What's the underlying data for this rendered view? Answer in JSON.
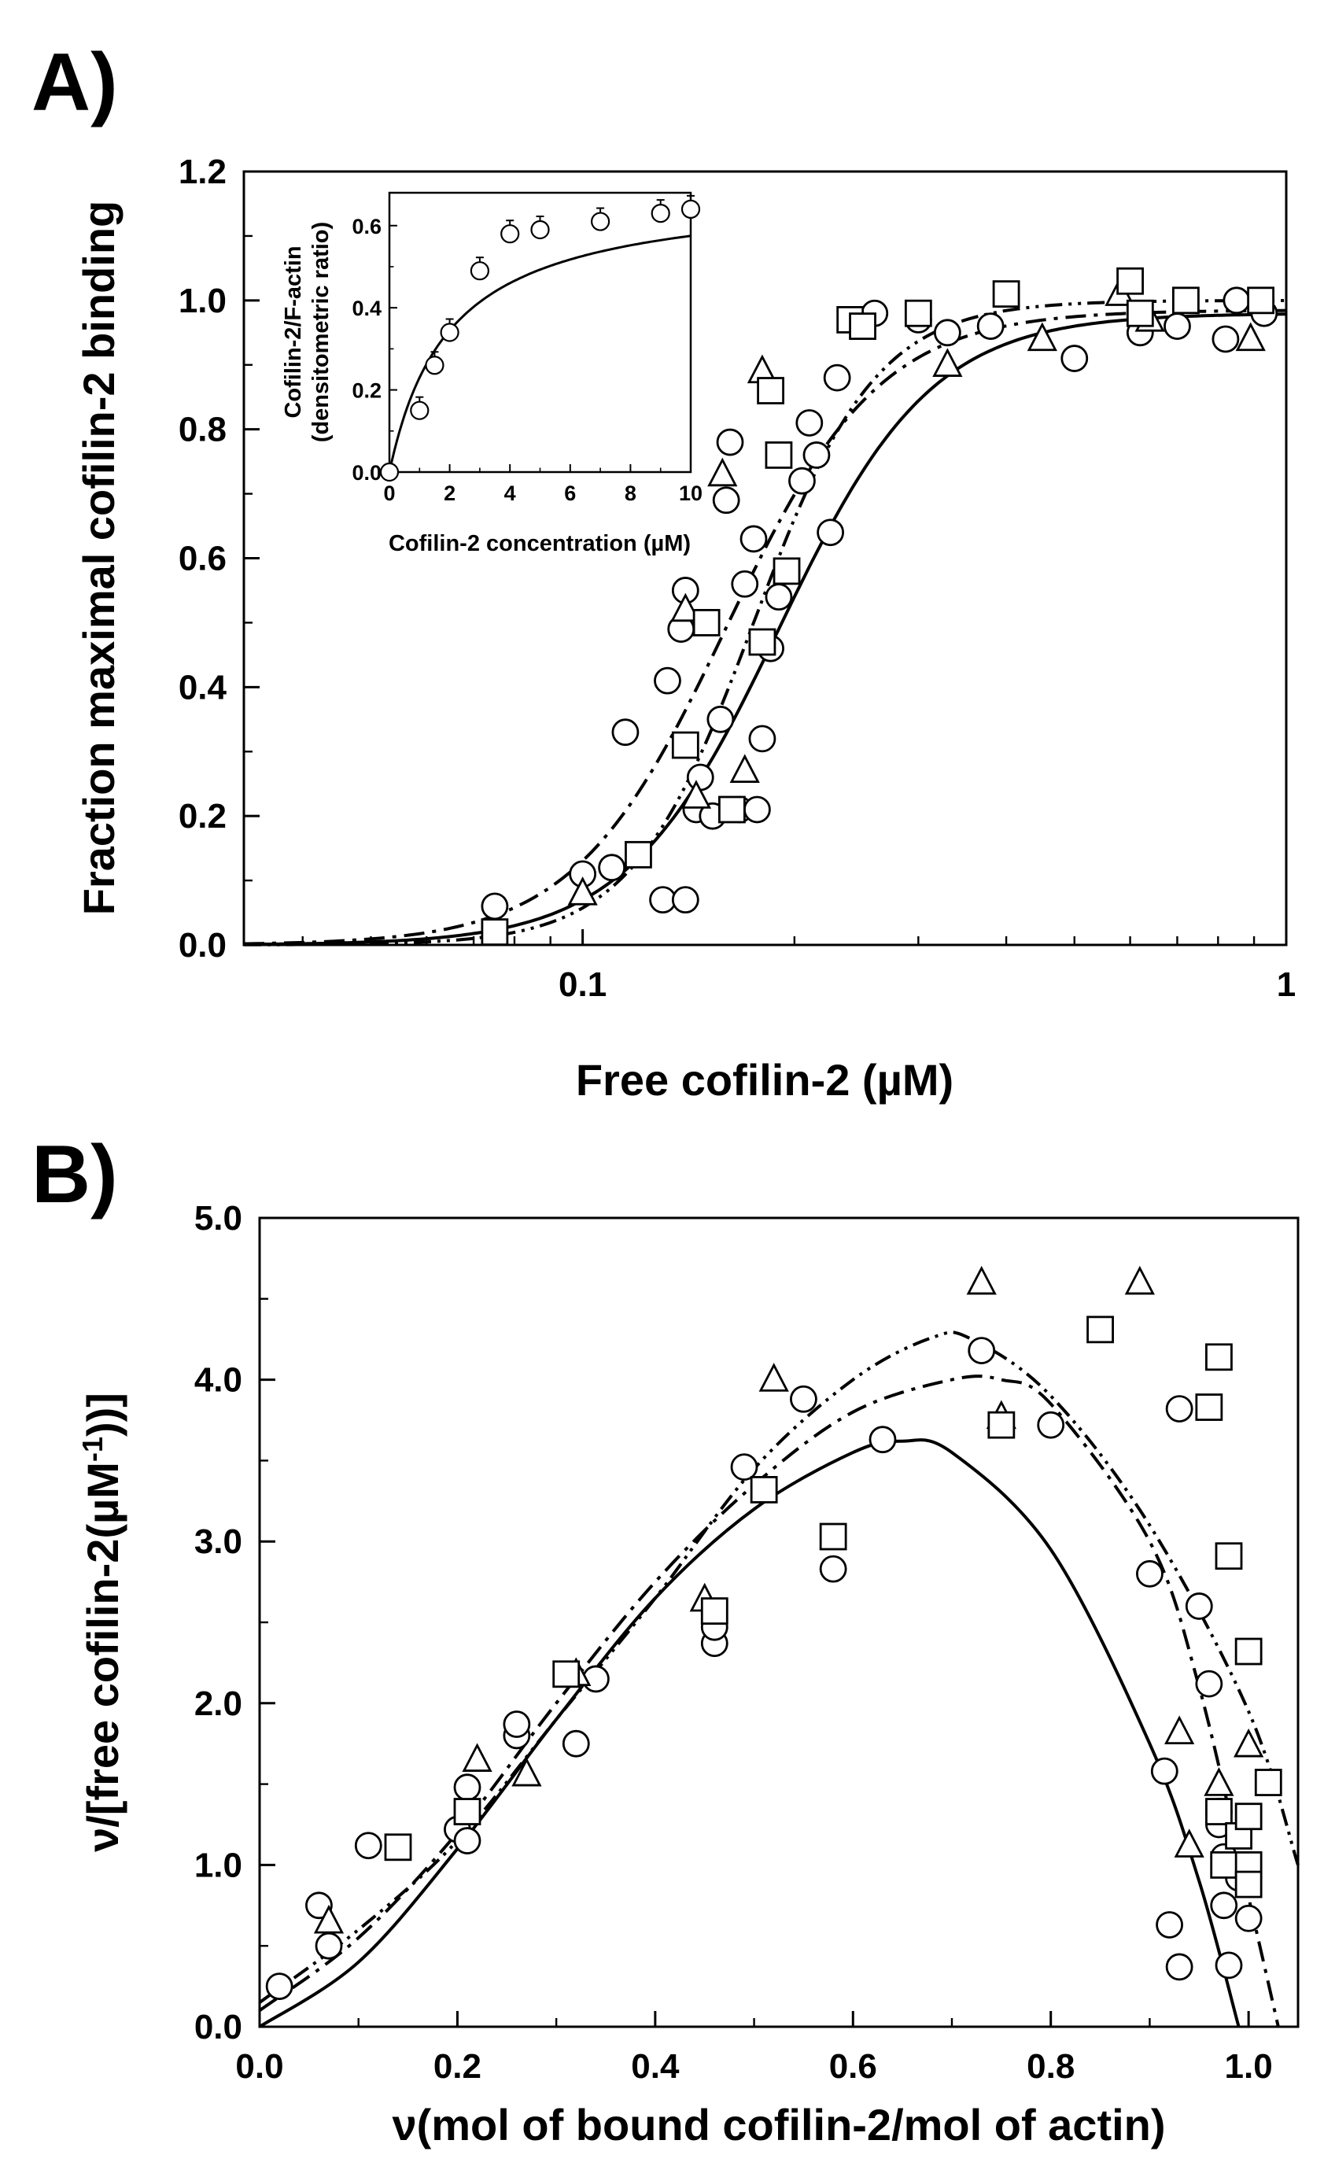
{
  "chart_data": [
    {
      "panel": "A)",
      "type": "scatter",
      "xlabel": "Free cofilin-2 (µM)",
      "ylabel": "Fraction maximal cofilin-2 binding",
      "xscale": "log",
      "xlim": [
        0.033,
        1
      ],
      "ylim": [
        0,
        1.2
      ],
      "xticks": [
        {
          "v": 0.1,
          "label": "0.1"
        },
        {
          "v": 1,
          "label": "1"
        }
      ],
      "yticks": [
        {
          "v": 0,
          "label": "0.0"
        },
        {
          "v": 0.2,
          "label": "0.2"
        },
        {
          "v": 0.4,
          "label": "0.4"
        },
        {
          "v": 0.6,
          "label": "0.6"
        },
        {
          "v": 0.8,
          "label": "0.8"
        },
        {
          "v": 1.0,
          "label": "1.0"
        },
        {
          "v": 1.2,
          "label": "1.2"
        }
      ],
      "fits": [
        {
          "style": "solid",
          "k": 0.19,
          "n": 4.0,
          "max": 0.98
        },
        {
          "style": "dash-dot",
          "k": 0.16,
          "n": 4.0,
          "max": 0.985
        },
        {
          "style": "dash-dot-dot",
          "k": 0.175,
          "n": 5.0,
          "max": 1.0
        }
      ],
      "series": [
        {
          "name": "circles",
          "marker": "circle",
          "points": [
            [
              0.075,
              0.06
            ],
            [
              0.1,
              0.11
            ],
            [
              0.11,
              0.12
            ],
            [
              0.115,
              0.33
            ],
            [
              0.13,
              0.07
            ],
            [
              0.14,
              0.07
            ],
            [
              0.132,
              0.41
            ],
            [
              0.138,
              0.49
            ],
            [
              0.14,
              0.55
            ],
            [
              0.145,
              0.21
            ],
            [
              0.147,
              0.26
            ],
            [
              0.153,
              0.2
            ],
            [
              0.157,
              0.35
            ],
            [
              0.16,
              0.69
            ],
            [
              0.162,
              0.78
            ],
            [
              0.167,
              0.21
            ],
            [
              0.17,
              0.56
            ],
            [
              0.175,
              0.63
            ],
            [
              0.177,
              0.21
            ],
            [
              0.18,
              0.32
            ],
            [
              0.185,
              0.46
            ],
            [
              0.19,
              0.54
            ],
            [
              0.195,
              0.58
            ],
            [
              0.205,
              0.72
            ],
            [
              0.21,
              0.81
            ],
            [
              0.215,
              0.76
            ],
            [
              0.225,
              0.64
            ],
            [
              0.23,
              0.88
            ],
            [
              0.26,
              0.98
            ],
            [
              0.3,
              0.97
            ],
            [
              0.33,
              0.95
            ],
            [
              0.38,
              0.96
            ],
            [
              0.5,
              0.91
            ],
            [
              0.62,
              0.95
            ],
            [
              0.7,
              0.96
            ],
            [
              0.82,
              0.94
            ],
            [
              0.85,
              1.0
            ],
            [
              0.93,
              0.98
            ]
          ]
        },
        {
          "name": "triangles",
          "marker": "triangle",
          "points": [
            [
              0.1,
              0.08
            ],
            [
              0.14,
              0.52
            ],
            [
              0.145,
              0.23
            ],
            [
              0.158,
              0.73
            ],
            [
              0.17,
              0.27
            ],
            [
              0.18,
              0.89
            ],
            [
              0.33,
              0.9
            ],
            [
              0.45,
              0.94
            ],
            [
              0.58,
              1.01
            ],
            [
              0.64,
              0.97
            ],
            [
              0.89,
              0.94
            ]
          ]
        },
        {
          "name": "squares",
          "marker": "square",
          "points": [
            [
              0.075,
              0.02
            ],
            [
              0.12,
              0.14
            ],
            [
              0.14,
              0.31
            ],
            [
              0.15,
              0.5
            ],
            [
              0.163,
              0.21
            ],
            [
              0.18,
              0.47
            ],
            [
              0.185,
              0.86
            ],
            [
              0.19,
              0.76
            ],
            [
              0.195,
              0.58
            ],
            [
              0.24,
              0.97
            ],
            [
              0.25,
              0.96
            ],
            [
              0.3,
              0.98
            ],
            [
              0.4,
              1.01
            ],
            [
              0.6,
              1.03
            ],
            [
              0.62,
              0.98
            ],
            [
              0.72,
              1.0
            ],
            [
              0.92,
              1.0
            ]
          ]
        }
      ],
      "inset": {
        "type": "scatter",
        "xlabel": "Cofilin-2 concentration (µM)",
        "ylabel_lines": [
          "Cofilin-2/F-actin",
          "(densitometric ratio)"
        ],
        "xlim": [
          0,
          10
        ],
        "ylim": [
          0,
          0.68
        ],
        "xticks": [
          {
            "v": 0,
            "label": "0"
          },
          {
            "v": 2,
            "label": "2"
          },
          {
            "v": 4,
            "label": "4"
          },
          {
            "v": 6,
            "label": "6"
          },
          {
            "v": 8,
            "label": "8"
          },
          {
            "v": 10,
            "label": "10"
          }
        ],
        "yticks": [
          {
            "v": 0,
            "label": "0.0"
          },
          {
            "v": 0.2,
            "label": "0.2"
          },
          {
            "v": 0.4,
            "label": "0.4"
          },
          {
            "v": 0.6,
            "label": "0.6"
          }
        ],
        "fit": {
          "style": "solid",
          "max": 0.69,
          "k": 2.0
        },
        "points": [
          [
            0,
            0.0
          ],
          [
            1,
            0.15
          ],
          [
            1.5,
            0.26
          ],
          [
            2,
            0.34
          ],
          [
            3,
            0.49
          ],
          [
            4,
            0.58
          ],
          [
            5,
            0.59
          ],
          [
            7,
            0.61
          ],
          [
            9,
            0.63
          ],
          [
            10,
            0.64
          ]
        ]
      }
    },
    {
      "panel": "B)",
      "type": "scatter",
      "xlabel": "ν(mol of bound cofilin-2/mol of actin)",
      "ylabel_parts": [
        "ν/[free cofilin-2(µM",
        "-1",
        "))]"
      ],
      "xlim": [
        0,
        1.05
      ],
      "ylim": [
        0,
        5.0
      ],
      "xticks": [
        {
          "v": 0,
          "label": "0.0"
        },
        {
          "v": 0.2,
          "label": "0.2"
        },
        {
          "v": 0.4,
          "label": "0.4"
        },
        {
          "v": 0.6,
          "label": "0.6"
        },
        {
          "v": 0.8,
          "label": "0.8"
        },
        {
          "v": 1.0,
          "label": "1.0"
        }
      ],
      "yticks": [
        {
          "v": 0,
          "label": "0.0"
        },
        {
          "v": 1,
          "label": "1.0"
        },
        {
          "v": 2,
          "label": "2.0"
        },
        {
          "v": 3,
          "label": "3.0"
        },
        {
          "v": 4,
          "label": "4.0"
        },
        {
          "v": 5,
          "label": "5.0"
        }
      ],
      "fits": [
        {
          "style": "solid",
          "points": [
            [
              0,
              0
            ],
            [
              0.1,
              0.4
            ],
            [
              0.2,
              1.1
            ],
            [
              0.3,
              1.9
            ],
            [
              0.4,
              2.65
            ],
            [
              0.5,
              3.2
            ],
            [
              0.6,
              3.55
            ],
            [
              0.65,
              3.62
            ],
            [
              0.7,
              3.55
            ],
            [
              0.8,
              2.95
            ],
            [
              0.9,
              1.75
            ],
            [
              0.95,
              0.9
            ],
            [
              0.99,
              0.0
            ]
          ]
        },
        {
          "style": "dash-dot",
          "points": [
            [
              0,
              0.1
            ],
            [
              0.1,
              0.55
            ],
            [
              0.2,
              1.2
            ],
            [
              0.3,
              2.0
            ],
            [
              0.4,
              2.75
            ],
            [
              0.5,
              3.35
            ],
            [
              0.6,
              3.8
            ],
            [
              0.7,
              4.0
            ],
            [
              0.75,
              4.0
            ],
            [
              0.8,
              3.85
            ],
            [
              0.9,
              3.0
            ],
            [
              0.95,
              2.1
            ],
            [
              1.0,
              0.8
            ],
            [
              1.03,
              0.0
            ]
          ]
        },
        {
          "style": "dash-dot-dot",
          "points": [
            [
              0,
              0.15
            ],
            [
              0.1,
              0.6
            ],
            [
              0.2,
              1.15
            ],
            [
              0.3,
              1.9
            ],
            [
              0.4,
              2.65
            ],
            [
              0.5,
              3.45
            ],
            [
              0.6,
              4.0
            ],
            [
              0.68,
              4.26
            ],
            [
              0.72,
              4.25
            ],
            [
              0.8,
              3.9
            ],
            [
              0.9,
              3.1
            ],
            [
              1.0,
              1.95
            ],
            [
              1.05,
              1.0
            ]
          ]
        }
      ],
      "series": [
        {
          "name": "circles",
          "marker": "circle",
          "points": [
            [
              0.02,
              0.25
            ],
            [
              0.06,
              0.75
            ],
            [
              0.07,
              0.5
            ],
            [
              0.11,
              1.12
            ],
            [
              0.2,
              1.22
            ],
            [
              0.21,
              1.15
            ],
            [
              0.21,
              1.48
            ],
            [
              0.26,
              1.8
            ],
            [
              0.26,
              1.87
            ],
            [
              0.32,
              1.75
            ],
            [
              0.34,
              2.15
            ],
            [
              0.46,
              2.37
            ],
            [
              0.46,
              2.47
            ],
            [
              0.49,
              3.46
            ],
            [
              0.55,
              3.88
            ],
            [
              0.58,
              2.83
            ],
            [
              0.63,
              3.63
            ],
            [
              0.73,
              4.18
            ],
            [
              0.8,
              3.72
            ],
            [
              0.9,
              2.8
            ],
            [
              0.915,
              1.58
            ],
            [
              0.92,
              0.63
            ],
            [
              0.93,
              0.37
            ],
            [
              0.93,
              3.82
            ],
            [
              0.95,
              2.6
            ],
            [
              0.96,
              2.12
            ],
            [
              0.97,
              1.33
            ],
            [
              0.97,
              1.25
            ],
            [
              0.975,
              1.05
            ],
            [
              0.975,
              0.75
            ],
            [
              0.98,
              0.38
            ],
            [
              0.99,
              0.92
            ],
            [
              1.0,
              0.67
            ]
          ]
        },
        {
          "name": "triangles",
          "marker": "triangle",
          "points": [
            [
              0.07,
              0.65
            ],
            [
              0.22,
              1.65
            ],
            [
              0.27,
              1.56
            ],
            [
              0.32,
              2.18
            ],
            [
              0.45,
              2.64
            ],
            [
              0.52,
              4.0
            ],
            [
              0.73,
              4.6
            ],
            [
              0.75,
              3.77
            ],
            [
              0.89,
              4.6
            ],
            [
              0.93,
              1.82
            ],
            [
              0.94,
              1.12
            ],
            [
              0.97,
              1.5
            ],
            [
              1.0,
              1.74
            ]
          ]
        },
        {
          "name": "squares",
          "marker": "square",
          "points": [
            [
              0.14,
              1.11
            ],
            [
              0.21,
              1.33
            ],
            [
              0.31,
              2.18
            ],
            [
              0.46,
              2.57
            ],
            [
              0.51,
              3.32
            ],
            [
              0.58,
              3.03
            ],
            [
              0.75,
              3.72
            ],
            [
              0.85,
              4.31
            ],
            [
              0.96,
              3.83
            ],
            [
              0.97,
              4.14
            ],
            [
              0.98,
              2.91
            ],
            [
              0.97,
              1.33
            ],
            [
              0.975,
              1.0
            ],
            [
              0.99,
              1.18
            ],
            [
              1.0,
              2.32
            ],
            [
              1.0,
              1.3
            ],
            [
              1.0,
              1.0
            ],
            [
              1.0,
              0.88
            ],
            [
              1.02,
              1.51
            ]
          ]
        }
      ]
    }
  ]
}
